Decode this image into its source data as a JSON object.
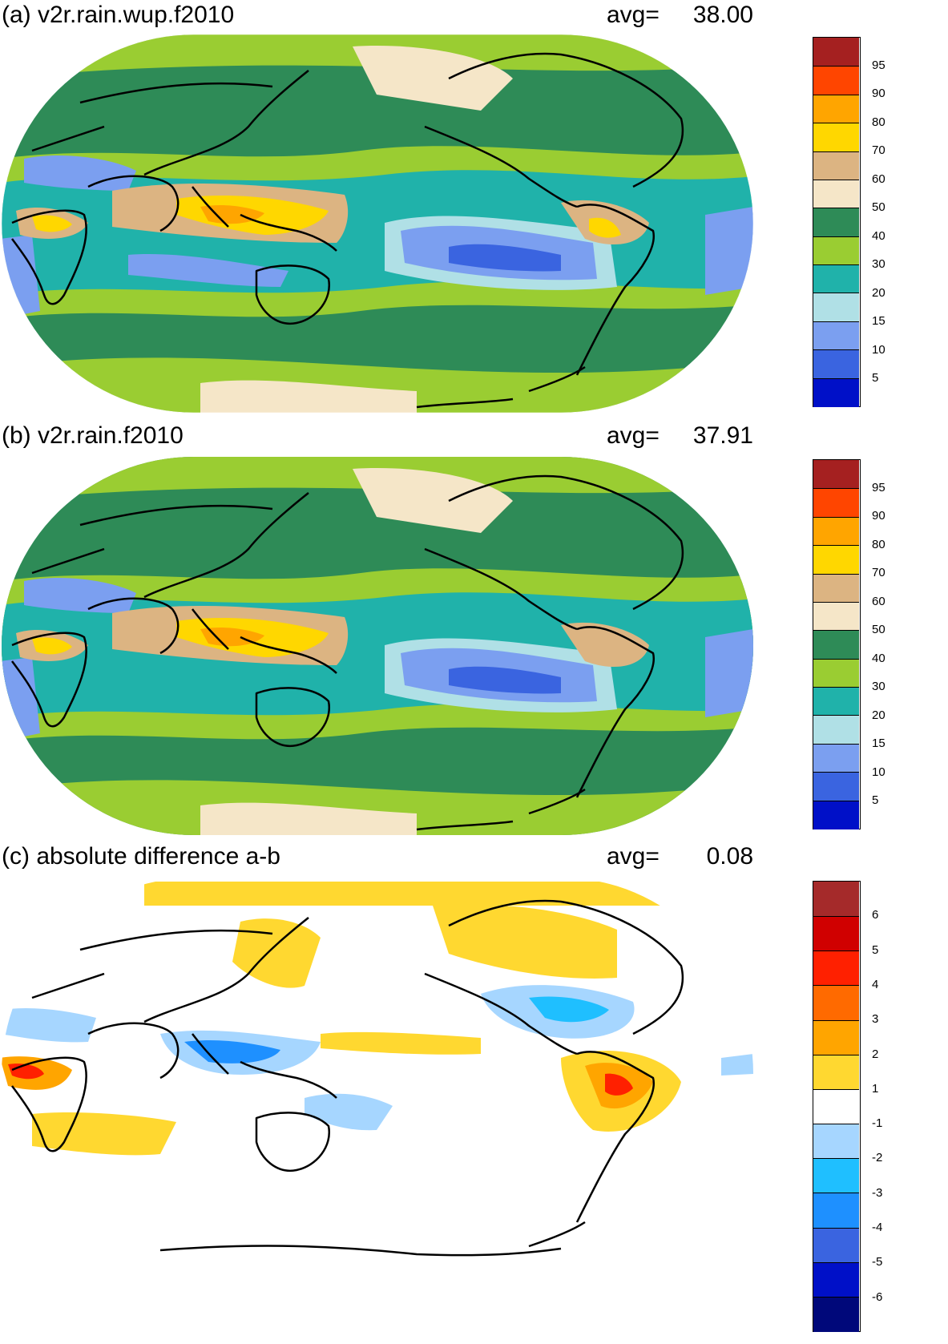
{
  "panels": [
    {
      "title": "(a) v2r.rain.wup.f2010",
      "avg_label": "avg=",
      "avg_value": "38.00",
      "colorbar_labels": [
        "95",
        "90",
        "80",
        "70",
        "60",
        "50",
        "40",
        "30",
        "20",
        "15",
        "10",
        "5"
      ],
      "colorbar_colors": [
        "#a52020",
        "#ff4500",
        "#ffa500",
        "#ffd700",
        "#dcb482",
        "#f5e6c8",
        "#2e8b57",
        "#9acd32",
        "#20b2aa",
        "#b0e0e6",
        "#7b9ff0",
        "#3a64e0",
        "#0010c8"
      ]
    },
    {
      "title": "(b) v2r.rain.f2010",
      "avg_label": "avg=",
      "avg_value": "37.91",
      "colorbar_labels": [
        "95",
        "90",
        "80",
        "70",
        "60",
        "50",
        "40",
        "30",
        "20",
        "15",
        "10",
        "5"
      ],
      "colorbar_colors": [
        "#a52020",
        "#ff4500",
        "#ffa500",
        "#ffd700",
        "#dcb482",
        "#f5e6c8",
        "#2e8b57",
        "#9acd32",
        "#20b2aa",
        "#b0e0e6",
        "#7b9ff0",
        "#3a64e0",
        "#0010c8"
      ]
    },
    {
      "title": "(c) absolute difference a-b",
      "avg_label": "avg=",
      "avg_value": "0.08",
      "colorbar_labels": [
        "6",
        "5",
        "4",
        "3",
        "2",
        "1",
        "-1",
        "-2",
        "-3",
        "-4",
        "-5",
        "-6"
      ],
      "colorbar_colors": [
        "#a52a2a",
        "#d00000",
        "#ff2000",
        "#ff6a00",
        "#ffa500",
        "#ffd830",
        "#ffffff",
        "#a6d6ff",
        "#1fbfff",
        "#1e90ff",
        "#3a64e0",
        "#0010c8",
        "#00087a"
      ]
    }
  ]
}
